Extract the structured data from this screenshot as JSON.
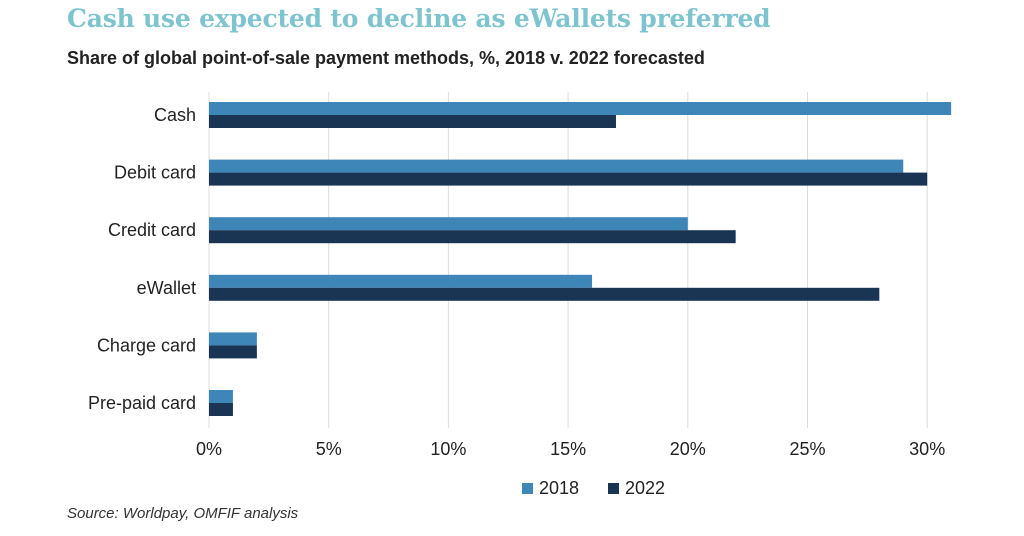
{
  "header": {
    "title": "Cash use expected to decline as eWallets preferred",
    "subtitle": "Share of global point-of-sale payment methods, %, 2018 v. 2022 forecasted"
  },
  "footer": {
    "source": "Source: Worldpay, OMFIF analysis"
  },
  "colors": {
    "title": "#7ec4cf",
    "series_2018": "#3f86b8",
    "series_2022": "#1a3553",
    "grid": "#dcdcdc"
  },
  "chart_data": {
    "type": "bar",
    "orientation": "horizontal",
    "categories": [
      "Cash",
      "Debit card",
      "Credit card",
      "eWallet",
      "Charge card",
      "Pre-paid card"
    ],
    "series": [
      {
        "name": "2018",
        "values": [
          31,
          29,
          20,
          16,
          2,
          1
        ]
      },
      {
        "name": "2022",
        "values": [
          17,
          30,
          22,
          28,
          2,
          1
        ]
      }
    ],
    "xticks": [
      "0%",
      "5%",
      "10%",
      "15%",
      "20%",
      "25%",
      "30%"
    ],
    "xlim": [
      0,
      31
    ],
    "title": "Cash use expected to decline as eWallets preferred",
    "subtitle": "Share of global point-of-sale payment methods, %, 2018 v. 2022 forecasted",
    "xlabel": "",
    "ylabel": "",
    "grid": true,
    "legend_position": "bottom-center"
  }
}
